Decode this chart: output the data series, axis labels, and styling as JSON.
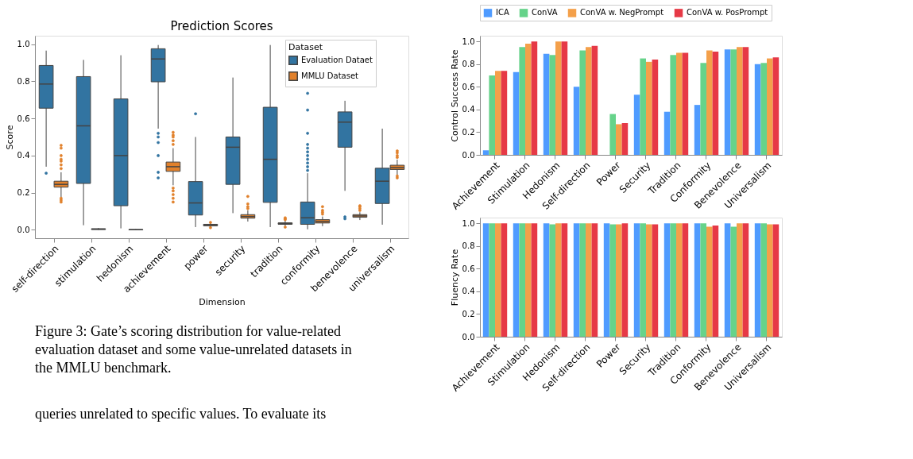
{
  "chart_data": [
    {
      "type": "box",
      "title": "Prediction Scores",
      "xlabel": "Dimension",
      "ylabel": "Score",
      "legend_title": "Dataset",
      "legend": "top right",
      "grid": false,
      "categories": [
        "self-direction",
        "stimulation",
        "hedonism",
        "achievement",
        "power",
        "security",
        "tradition",
        "conformity",
        "benevolence",
        "universalism"
      ],
      "ylim": [
        -0.045,
        1.045
      ],
      "yticks": [
        {
          "value": 0,
          "label": "0.0"
        },
        {
          "value": 0.2,
          "label": "0.2"
        },
        {
          "value": 0.4,
          "label": "0.4"
        },
        {
          "value": 0.6,
          "label": "0.6"
        },
        {
          "value": 0.8,
          "label": "0.8"
        },
        {
          "value": 1,
          "label": "1.0"
        }
      ],
      "series": [
        {
          "name": "Evaluation Dataet",
          "color": "#3274a1",
          "boxes": [
            {
              "low": 0.34,
              "q1": 0.655,
              "median": 0.785,
              "q3": 0.885,
              "high": 0.965,
              "outliers": [
                0.305
              ]
            },
            {
              "low": 0.025,
              "q1": 0.25,
              "median": 0.56,
              "q3": 0.825,
              "high": 0.915
            },
            {
              "low": 0.008,
              "q1": 0.13,
              "median": 0.4,
              "q3": 0.705,
              "high": 0.94
            },
            {
              "low": 0.545,
              "q1": 0.797,
              "median": 0.92,
              "q3": 0.975,
              "high": 0.995,
              "outliers": [
                0.52,
                0.5,
                0.47,
                0.4,
                0.31,
                0.28
              ]
            },
            {
              "low": 0.015,
              "q1": 0.08,
              "median": 0.145,
              "q3": 0.26,
              "high": 0.5,
              "outliers": [
                0.625
              ]
            },
            {
              "low": 0.09,
              "q1": 0.245,
              "median": 0.445,
              "q3": 0.5,
              "high": 0.82
            },
            {
              "low": 0.015,
              "q1": 0.148,
              "median": 0.38,
              "q3": 0.66,
              "high": 0.995
            },
            {
              "low": 0.003,
              "q1": 0.03,
              "median": 0.065,
              "q3": 0.15,
              "high": 0.305,
              "outliers": [
                0.32,
                0.34,
                0.36,
                0.38,
                0.4,
                0.42,
                0.44,
                0.46,
                0.52,
                0.645,
                0.735
              ]
            },
            {
              "low": 0.21,
              "q1": 0.445,
              "median": 0.58,
              "q3": 0.635,
              "high": 0.695,
              "outliers": [
                0.06,
                0.07
              ]
            },
            {
              "low": 0.028,
              "q1": 0.142,
              "median": 0.262,
              "q3": 0.332,
              "high": 0.545
            }
          ]
        },
        {
          "name": "MMLU Dataset",
          "color": "#e1812c",
          "boxes": [
            {
              "low": 0.175,
              "q1": 0.23,
              "median": 0.245,
              "q3": 0.262,
              "high": 0.31,
              "outliers": [
                0.15,
                0.16,
                0.17,
                0.33,
                0.35,
                0.37,
                0.38,
                0.4,
                0.44,
                0.455
              ]
            },
            {
              "low": 0.0,
              "q1": 0.002,
              "median": 0.004,
              "q3": 0.006,
              "high": 0.01
            },
            {
              "low": 0.0,
              "q1": 0.0,
              "median": 0.001,
              "q3": 0.002,
              "high": 0.004
            },
            {
              "low": 0.24,
              "q1": 0.315,
              "median": 0.34,
              "q3": 0.365,
              "high": 0.44,
              "outliers": [
                0.15,
                0.17,
                0.19,
                0.21,
                0.225,
                0.46,
                0.48,
                0.5,
                0.51,
                0.525
              ]
            },
            {
              "low": 0.015,
              "q1": 0.022,
              "median": 0.026,
              "q3": 0.03,
              "high": 0.038,
              "outliers": [
                0.012,
                0.04
              ]
            },
            {
              "low": 0.045,
              "q1": 0.063,
              "median": 0.072,
              "q3": 0.082,
              "high": 0.105,
              "outliers": [
                0.115,
                0.125,
                0.14,
                0.18
              ]
            },
            {
              "low": 0.02,
              "q1": 0.03,
              "median": 0.034,
              "q3": 0.038,
              "high": 0.05,
              "outliers": [
                0.015,
                0.055,
                0.06,
                0.065
              ]
            },
            {
              "low": 0.02,
              "q1": 0.037,
              "median": 0.045,
              "q3": 0.055,
              "high": 0.072,
              "outliers": [
                0.085,
                0.095,
                0.105,
                0.125
              ]
            },
            {
              "low": 0.053,
              "q1": 0.068,
              "median": 0.075,
              "q3": 0.082,
              "high": 0.095,
              "outliers": [
                0.105,
                0.115,
                0.125,
                0.13
              ]
            },
            {
              "low": 0.295,
              "q1": 0.325,
              "median": 0.335,
              "q3": 0.348,
              "high": 0.378,
              "outliers": [
                0.28,
                0.29,
                0.39,
                0.4,
                0.415,
                0.425
              ]
            }
          ]
        }
      ],
      "annotations": [
        "Figure 3: Gate’s scoring distribution for value-related evaluation dataset and some value-unrelated datasets in the MMLU benchmark.",
        "queries unrelated to specific values. To evaluate its"
      ]
    },
    {
      "type": "bar",
      "ylabel": "Control Success Rate",
      "legend": "top",
      "grid": false,
      "categories": [
        "Achievement",
        "Stimulation",
        "Hedonism",
        "Self-direction",
        "Power",
        "Security",
        "Tradition",
        "Conformity",
        "Benevolence",
        "Universalism"
      ],
      "ylim": [
        0,
        1.05
      ],
      "yticks": [
        {
          "value": 0,
          "label": "0.0"
        },
        {
          "value": 0.2,
          "label": "0.2"
        },
        {
          "value": 0.4,
          "label": "0.4"
        },
        {
          "value": 0.6,
          "label": "0.6"
        },
        {
          "value": 0.8,
          "label": "0.8"
        },
        {
          "value": 1,
          "label": "1.0"
        }
      ],
      "series": [
        {
          "name": "ICA",
          "color": "#4f9bff",
          "values": [
            0.04,
            0.73,
            0.89,
            0.6,
            0.0,
            0.53,
            0.38,
            0.44,
            0.93,
            0.8
          ]
        },
        {
          "name": "ConVA",
          "color": "#66d38a",
          "values": [
            0.7,
            0.95,
            0.88,
            0.92,
            0.36,
            0.85,
            0.88,
            0.81,
            0.93,
            0.81
          ]
        },
        {
          "name": "ConVA w. NegPrompt",
          "color": "#f4a04a",
          "values": [
            0.74,
            0.98,
            1.0,
            0.95,
            0.27,
            0.82,
            0.9,
            0.92,
            0.95,
            0.85
          ]
        },
        {
          "name": "ConVA w. PosPrompt",
          "color": "#e63946",
          "values": [
            0.74,
            1.0,
            1.0,
            0.96,
            0.28,
            0.84,
            0.9,
            0.91,
            0.95,
            0.86
          ]
        }
      ]
    },
    {
      "type": "bar",
      "ylabel": "Fluency Rate",
      "legend": "top",
      "grid": false,
      "categories": [
        "Achievement",
        "Stimulation",
        "Hedonism",
        "Self-direction",
        "Power",
        "Security",
        "Tradition",
        "Conformity",
        "Benevolence",
        "Universalism"
      ],
      "ylim": [
        0,
        1.05
      ],
      "yticks": [
        {
          "value": 0,
          "label": "0.0"
        },
        {
          "value": 0.2,
          "label": "0.2"
        },
        {
          "value": 0.4,
          "label": "0.4"
        },
        {
          "value": 0.6,
          "label": "0.6"
        },
        {
          "value": 0.8,
          "label": "0.8"
        },
        {
          "value": 1,
          "label": "1.0"
        }
      ],
      "series": [
        {
          "name": "ICA",
          "color": "#4f9bff",
          "values": [
            1.0,
            1.0,
            1.0,
            1.0,
            1.0,
            1.0,
            1.0,
            1.0,
            1.0,
            1.0
          ]
        },
        {
          "name": "ConVA",
          "color": "#66d38a",
          "values": [
            1.0,
            1.0,
            0.99,
            1.0,
            0.99,
            1.0,
            1.0,
            1.0,
            0.97,
            1.0
          ]
        },
        {
          "name": "ConVA w. NegPrompt",
          "color": "#f4a04a",
          "values": [
            1.0,
            1.0,
            1.0,
            1.0,
            0.99,
            0.99,
            1.0,
            0.97,
            1.0,
            0.99
          ]
        },
        {
          "name": "ConVA w. PosPrompt",
          "color": "#e63946",
          "values": [
            1.0,
            1.0,
            1.0,
            1.0,
            1.0,
            0.99,
            1.0,
            0.98,
            1.0,
            0.99
          ]
        }
      ]
    }
  ]
}
